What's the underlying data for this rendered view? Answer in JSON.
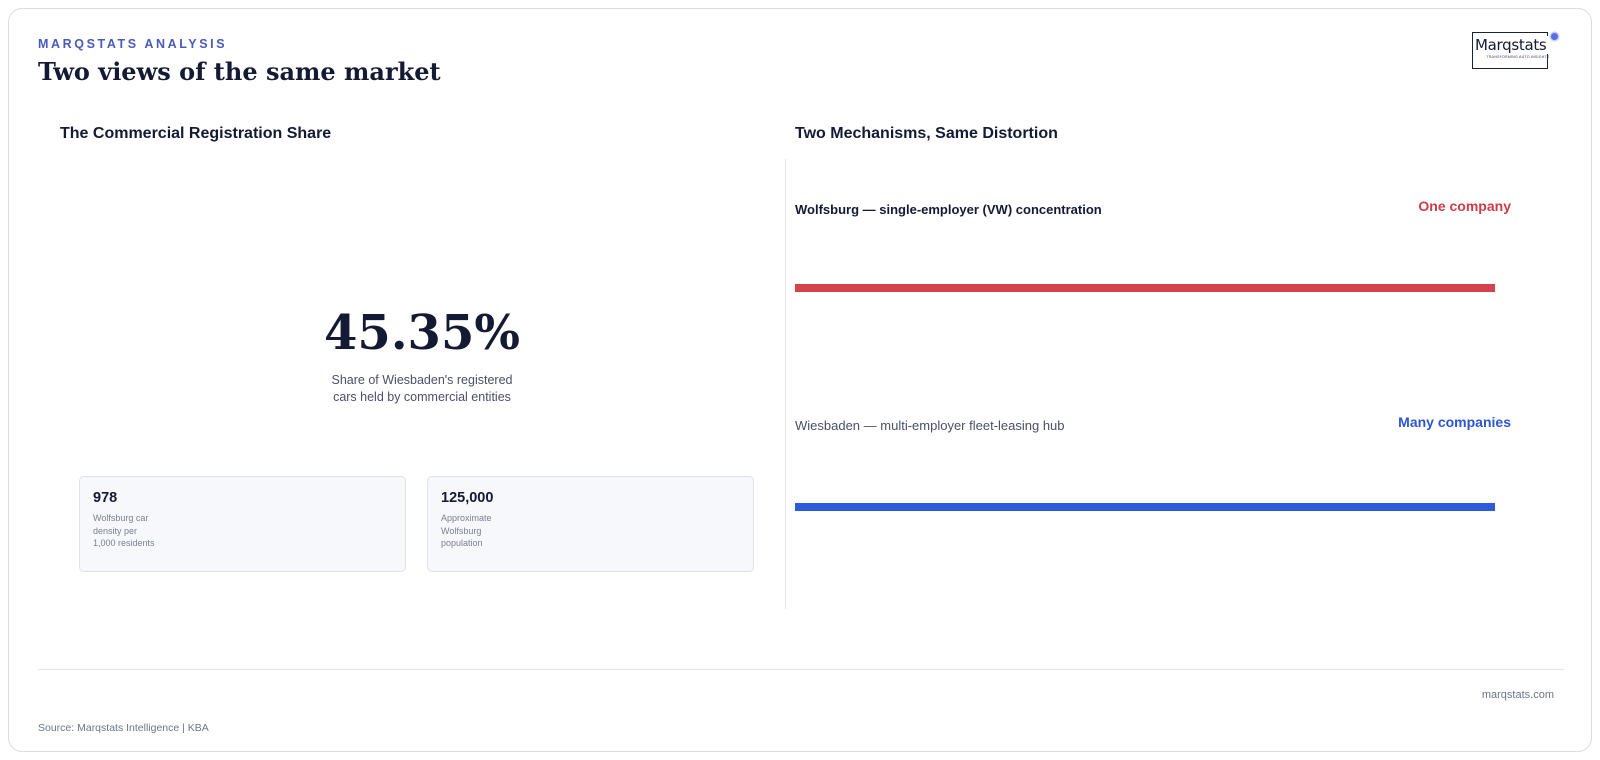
{
  "header": {
    "eyebrow": "MARQSTATS ANALYSIS",
    "title": "Two views of the same market"
  },
  "logo": {
    "word": "Marqstats",
    "tagline": "TRANSFORMING AUTO INSIGHTS"
  },
  "left_panel": {
    "title": "The Commercial Registration Share",
    "stat_value": "45.35%",
    "stat_caption": "Share of Wiesbaden's registered cars held by commercial entities",
    "cards": [
      {
        "value": "978",
        "label": "Wolfsburg car density per 1,000 residents"
      },
      {
        "value": "125,000",
        "label": "Approximate Wolfsburg population"
      }
    ]
  },
  "right_panel": {
    "title": "Two Mechanisms, Same Distortion",
    "mechanisms": [
      {
        "label": "Wolfsburg — single-employer (VW) concentration",
        "tag": "One company",
        "color": "#d4434d"
      },
      {
        "label": "Wiesbaden — multi-employer fleet-leasing hub",
        "tag": "Many companies",
        "color": "#2d5bdc"
      }
    ]
  },
  "footer": {
    "url": "marqstats.com",
    "source": "Source: Marqstats Intelligence | KBA"
  }
}
